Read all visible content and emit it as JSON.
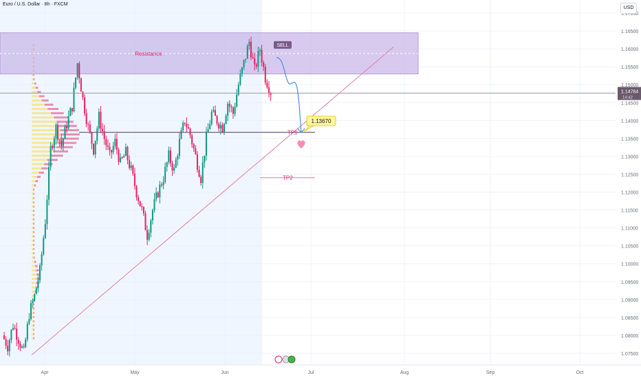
{
  "header": {
    "symbol_line": "Euro / U.S. Dollar · 8h · FXCM"
  },
  "currency_badge": "USD",
  "chart_data": {
    "type": "candlestick",
    "symbol": "Euro / U.S. Dollar",
    "timeframe": "8h",
    "source": "FXCM",
    "y_axis": {
      "ticks": [
        "1.17000",
        "1.16500",
        "1.16000",
        "1.15500",
        "1.15000",
        "1.14500",
        "1.14000",
        "1.13500",
        "1.13000",
        "1.12500",
        "1.12000",
        "1.11500",
        "1.11000",
        "1.10500",
        "1.10000",
        "1.09500",
        "1.09000",
        "1.08500",
        "1.08000",
        "1.07500"
      ],
      "range": [
        1.072,
        1.172
      ]
    },
    "x_axis": {
      "ticks": [
        "Apr",
        "May",
        "Jun",
        "Jul",
        "Aug",
        "Sep",
        "Oct"
      ]
    },
    "current_price": {
      "label": "1.14764",
      "sub": "14:42",
      "value": 1.14764
    },
    "resistance": {
      "label": "Resistance",
      "top": 1.1645,
      "bottom": 1.153,
      "mid": 1.1587
    },
    "sell_marker": {
      "label": "SELL",
      "price": 1.161
    },
    "target_callout": {
      "label": "1.13670",
      "price": 1.1367
    },
    "tp1": {
      "label": "TP1",
      "price": 1.1367
    },
    "tp2": {
      "label": "TP2",
      "price": 1.124
    },
    "trendline": {
      "start": {
        "date": "Mar 28",
        "price": 1.0745
      },
      "end": {
        "date": "Jul 28",
        "price": 1.1605
      }
    },
    "price_path": [
      1.08,
      1.077,
      1.083,
      1.079,
      1.075,
      1.086,
      1.091,
      1.098,
      1.112,
      1.132,
      1.138,
      1.133,
      1.139,
      1.144,
      1.156,
      1.146,
      1.138,
      1.132,
      1.141,
      1.135,
      1.13,
      1.134,
      1.128,
      1.131,
      1.126,
      1.12,
      1.115,
      1.108,
      1.115,
      1.12,
      1.124,
      1.13,
      1.126,
      1.134,
      1.14,
      1.136,
      1.13,
      1.124,
      1.135,
      1.142,
      1.14,
      1.138,
      1.145,
      1.142,
      1.15,
      1.156,
      1.162,
      1.154,
      1.16,
      1.152,
      1.148
    ]
  }
}
